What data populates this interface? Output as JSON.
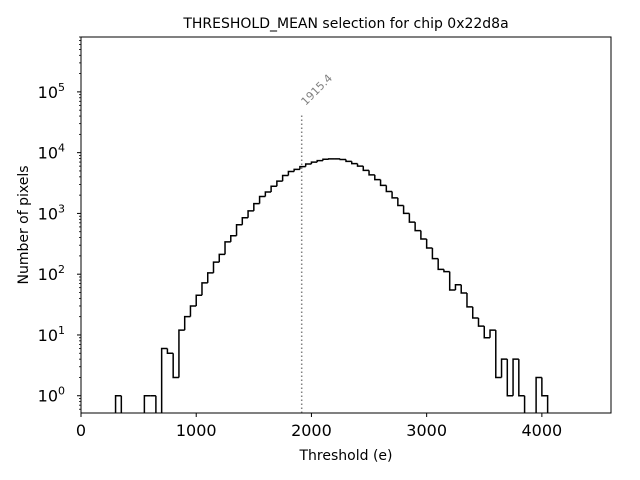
{
  "chart_data": {
    "type": "histogram",
    "title": "THRESHOLD_MEAN selection for chip 0x22d8a",
    "xlabel": "Threshold (e)",
    "ylabel": "Number of pixels",
    "xlim": [
      0,
      4600
    ],
    "ylim": [
      0.52,
      800000
    ],
    "yscale": "log",
    "grid": false,
    "xticks": [
      0,
      1000,
      2000,
      3000,
      4000
    ],
    "xtick_labels": [
      "0",
      "1000",
      "2000",
      "3000",
      "4000"
    ],
    "yticks_exp": [
      0,
      1,
      2,
      3,
      4,
      5
    ],
    "yticks_base": "10",
    "bin_width": 50,
    "bins": [
      {
        "x": 300,
        "count": 1
      },
      {
        "x": 350,
        "count": 0
      },
      {
        "x": 400,
        "count": 0
      },
      {
        "x": 450,
        "count": 0
      },
      {
        "x": 500,
        "count": 0
      },
      {
        "x": 550,
        "count": 1
      },
      {
        "x": 600,
        "count": 1
      },
      {
        "x": 650,
        "count": 0
      },
      {
        "x": 700,
        "count": 6
      },
      {
        "x": 750,
        "count": 5
      },
      {
        "x": 800,
        "count": 2
      },
      {
        "x": 850,
        "count": 12
      },
      {
        "x": 900,
        "count": 20
      },
      {
        "x": 950,
        "count": 30
      },
      {
        "x": 1000,
        "count": 45
      },
      {
        "x": 1050,
        "count": 72
      },
      {
        "x": 1100,
        "count": 105
      },
      {
        "x": 1150,
        "count": 158
      },
      {
        "x": 1200,
        "count": 212
      },
      {
        "x": 1250,
        "count": 340
      },
      {
        "x": 1300,
        "count": 430
      },
      {
        "x": 1350,
        "count": 650
      },
      {
        "x": 1400,
        "count": 850
      },
      {
        "x": 1450,
        "count": 1100
      },
      {
        "x": 1500,
        "count": 1450
      },
      {
        "x": 1550,
        "count": 1900
      },
      {
        "x": 1600,
        "count": 2250
      },
      {
        "x": 1650,
        "count": 2800
      },
      {
        "x": 1700,
        "count": 3400
      },
      {
        "x": 1750,
        "count": 4200
      },
      {
        "x": 1800,
        "count": 4900
      },
      {
        "x": 1850,
        "count": 5300
      },
      {
        "x": 1900,
        "count": 5900
      },
      {
        "x": 1950,
        "count": 6500
      },
      {
        "x": 2000,
        "count": 7000
      },
      {
        "x": 2050,
        "count": 7400
      },
      {
        "x": 2100,
        "count": 7800
      },
      {
        "x": 2150,
        "count": 7900
      },
      {
        "x": 2200,
        "count": 7900
      },
      {
        "x": 2250,
        "count": 7700
      },
      {
        "x": 2300,
        "count": 7200
      },
      {
        "x": 2350,
        "count": 6600
      },
      {
        "x": 2400,
        "count": 6000
      },
      {
        "x": 2450,
        "count": 5100
      },
      {
        "x": 2500,
        "count": 4300
      },
      {
        "x": 2550,
        "count": 3600
      },
      {
        "x": 2600,
        "count": 2900
      },
      {
        "x": 2650,
        "count": 2300
      },
      {
        "x": 2700,
        "count": 1800
      },
      {
        "x": 2750,
        "count": 1350
      },
      {
        "x": 2800,
        "count": 1000
      },
      {
        "x": 2850,
        "count": 720
      },
      {
        "x": 2900,
        "count": 520
      },
      {
        "x": 2950,
        "count": 380
      },
      {
        "x": 3000,
        "count": 270
      },
      {
        "x": 3050,
        "count": 180
      },
      {
        "x": 3100,
        "count": 120
      },
      {
        "x": 3150,
        "count": 110
      },
      {
        "x": 3200,
        "count": 55
      },
      {
        "x": 3250,
        "count": 67
      },
      {
        "x": 3300,
        "count": 49
      },
      {
        "x": 3350,
        "count": 29
      },
      {
        "x": 3400,
        "count": 19
      },
      {
        "x": 3450,
        "count": 14
      },
      {
        "x": 3500,
        "count": 9
      },
      {
        "x": 3550,
        "count": 12
      },
      {
        "x": 3600,
        "count": 2
      },
      {
        "x": 3650,
        "count": 4
      },
      {
        "x": 3700,
        "count": 1
      },
      {
        "x": 3750,
        "count": 4
      },
      {
        "x": 3800,
        "count": 1
      },
      {
        "x": 3850,
        "count": 0
      },
      {
        "x": 3900,
        "count": 0
      },
      {
        "x": 3950,
        "count": 2
      },
      {
        "x": 4000,
        "count": 1
      }
    ],
    "annotations": [
      {
        "type": "vline",
        "x": 1915.4,
        "style": "dotted",
        "color": "#808080",
        "label": "1915.4"
      }
    ]
  }
}
